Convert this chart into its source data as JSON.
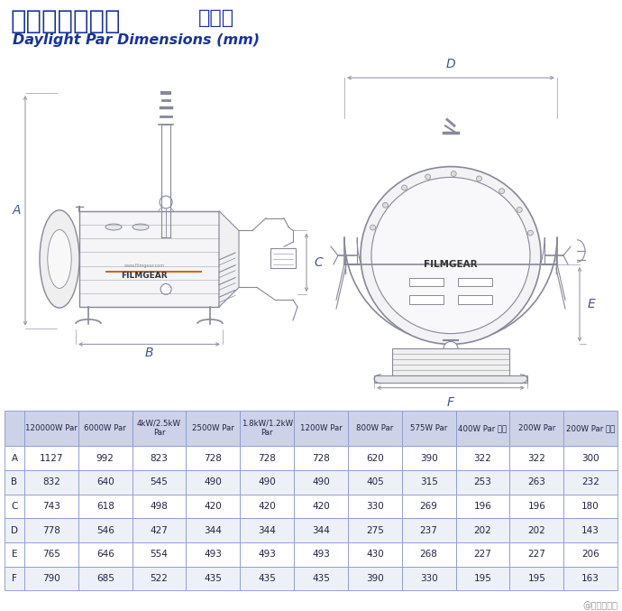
{
  "title_chinese": "高色温直射镝灯  规格表",
  "title_english": "Daylight Par Dimensions (mm)",
  "title_color": "#1a3399",
  "bg_color": "#ffffff",
  "table_header_bg": "#cdd2e8",
  "table_row_bg1": "#ffffff",
  "table_row_bg2": "#eef0f8",
  "table_border_color": "#8899cc",
  "watermark": "@影视工业网",
  "columns": [
    "",
    "120000W Par",
    "6000W Par",
    "4kW/2.5kW\nPar",
    "2500W Par",
    "1.8kW/1.2kW\nPar",
    "1200W Par",
    "800W Par",
    "575W Par",
    "400W Par 小型",
    "200W Par",
    "200W Par 小型"
  ],
  "rows": [
    [
      "A",
      "1127",
      "992",
      "823",
      "728",
      "728",
      "728",
      "620",
      "390",
      "322",
      "322",
      "300"
    ],
    [
      "B",
      "832",
      "640",
      "545",
      "490",
      "490",
      "490",
      "405",
      "315",
      "253",
      "263",
      "232"
    ],
    [
      "C",
      "743",
      "618",
      "498",
      "420",
      "420",
      "420",
      "330",
      "269",
      "196",
      "196",
      "180"
    ],
    [
      "D",
      "778",
      "546",
      "427",
      "344",
      "344",
      "344",
      "275",
      "237",
      "202",
      "202",
      "143"
    ],
    [
      "E",
      "765",
      "646",
      "554",
      "493",
      "493",
      "493",
      "430",
      "268",
      "227",
      "227",
      "206"
    ],
    [
      "F",
      "790",
      "685",
      "522",
      "435",
      "435",
      "435",
      "390",
      "330",
      "195",
      "195",
      "163"
    ]
  ],
  "lc": "#888899",
  "arrow_color": "#999aaa",
  "dim_text_color": "#445588"
}
